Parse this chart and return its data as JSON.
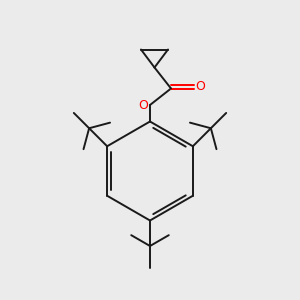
{
  "bg_color": "#ebebeb",
  "bond_color": "#1a1a1a",
  "oxygen_color": "#ff0000",
  "line_width": 1.4,
  "figsize": [
    3.0,
    3.0
  ],
  "dpi": 100
}
